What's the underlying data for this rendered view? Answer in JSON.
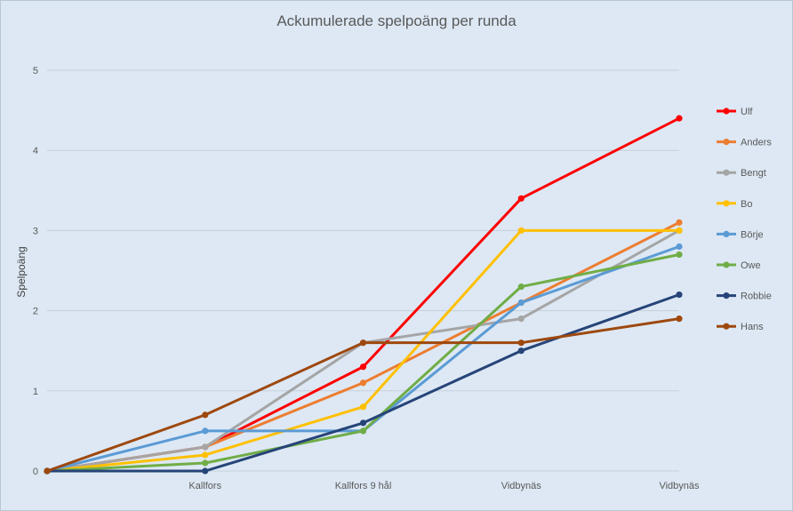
{
  "chart_data": {
    "type": "line",
    "title": "Ackumulerade spelpoäng per runda",
    "xlabel": "",
    "ylabel": "Spelpoäng",
    "ylim": [
      0,
      5
    ],
    "yticks": [
      0,
      1,
      2,
      3,
      4,
      5
    ],
    "categories": [
      "",
      "Kallfors",
      "Kallfors 9 hål",
      "Vidbynäs",
      "Vidbynäs"
    ],
    "grid": true,
    "legend_position": "right",
    "series": [
      {
        "name": "Ulf",
        "color": "#ff0000",
        "values": [
          0,
          0.3,
          1.3,
          3.4,
          4.4
        ]
      },
      {
        "name": "Anders",
        "color": "#ed7d31",
        "values": [
          0,
          0.3,
          1.1,
          2.1,
          3.1
        ]
      },
      {
        "name": "Bengt",
        "color": "#a5a5a5",
        "values": [
          0,
          0.3,
          1.6,
          1.9,
          3.0
        ]
      },
      {
        "name": "Bo",
        "color": "#ffc000",
        "values": [
          0,
          0.2,
          0.8,
          3.0,
          3.0
        ]
      },
      {
        "name": "Börje",
        "color": "#5b9bd5",
        "values": [
          0,
          0.5,
          0.5,
          2.1,
          2.8
        ]
      },
      {
        "name": "Owe",
        "color": "#70ad47",
        "values": [
          0,
          0.1,
          0.5,
          2.3,
          2.7
        ]
      },
      {
        "name": "Robbie",
        "color": "#264478",
        "values": [
          0,
          0,
          0.6,
          1.5,
          2.2
        ]
      },
      {
        "name": "Hans",
        "color": "#9e480e",
        "values": [
          0,
          0.7,
          1.6,
          1.6,
          1.9
        ]
      }
    ]
  }
}
